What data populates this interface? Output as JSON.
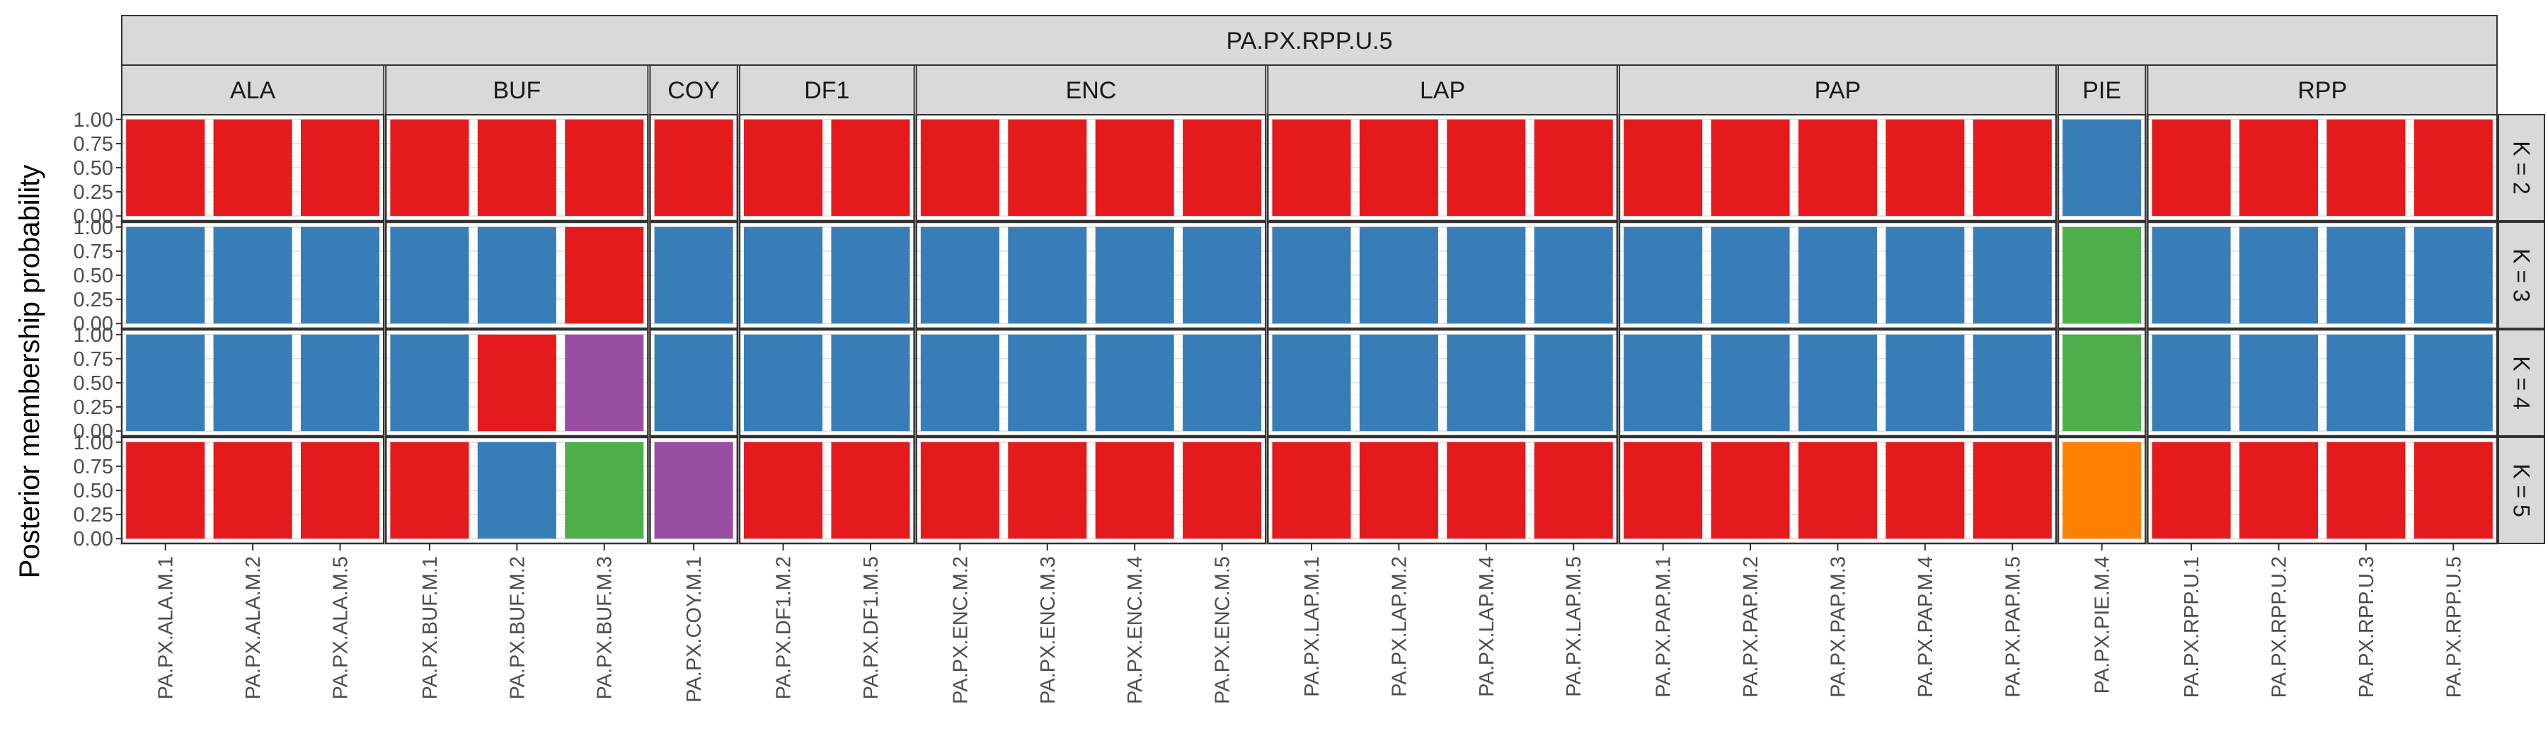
{
  "chart_data": {
    "type": "bar",
    "subtype": "stacked-faceted",
    "title": "PA.PX.RPP.U.5",
    "ylabel": "Posterior membership probability",
    "xlabel": "",
    "ylim": [
      0,
      1
    ],
    "y_ticks": [
      "0.00",
      "0.25",
      "0.50",
      "0.75",
      "1.00"
    ],
    "grid": true,
    "cluster_colors": {
      "1": "#E41A1C",
      "2": "#377EB8",
      "3": "#4DAF4A",
      "4": "#984EA3",
      "5": "#FF7F00"
    },
    "groups": [
      {
        "name": "ALA",
        "samples": [
          "PA.PX.ALA.M.1",
          "PA.PX.ALA.M.2",
          "PA.PX.ALA.M.5"
        ]
      },
      {
        "name": "BUF",
        "samples": [
          "PA.PX.BUF.M.1",
          "PA.PX.BUF.M.2",
          "PA.PX.BUF.M.3"
        ]
      },
      {
        "name": "COY",
        "samples": [
          "PA.PX.COY.M.1"
        ]
      },
      {
        "name": "DF1",
        "samples": [
          "PA.PX.DF1.M.2",
          "PA.PX.DF1.M.5"
        ]
      },
      {
        "name": "ENC",
        "samples": [
          "PA.PX.ENC.M.2",
          "PA.PX.ENC.M.3",
          "PA.PX.ENC.M.4",
          "PA.PX.ENC.M.5"
        ]
      },
      {
        "name": "LAP",
        "samples": [
          "PA.PX.LAP.M.1",
          "PA.PX.LAP.M.2",
          "PA.PX.LAP.M.4",
          "PA.PX.LAP.M.5"
        ]
      },
      {
        "name": "PAP",
        "samples": [
          "PA.PX.PAP.M.1",
          "PA.PX.PAP.M.2",
          "PA.PX.PAP.M.3",
          "PA.PX.PAP.M.4",
          "PA.PX.PAP.M.5"
        ]
      },
      {
        "name": "PIE",
        "samples": [
          "PA.PX.PIE.M.4"
        ]
      },
      {
        "name": "RPP",
        "samples": [
          "PA.PX.RPP.U.1",
          "PA.PX.RPP.U.2",
          "PA.PX.RPP.U.3",
          "PA.PX.RPP.U.5"
        ]
      }
    ],
    "rows": [
      {
        "label": "K = 2",
        "assignments": [
          1,
          1,
          1,
          1,
          1,
          1,
          1,
          1,
          1,
          1,
          1,
          1,
          1,
          1,
          1,
          1,
          1,
          1,
          1,
          1,
          1,
          1,
          2,
          1,
          1,
          1,
          1
        ]
      },
      {
        "label": "K = 3",
        "assignments": [
          2,
          2,
          2,
          2,
          2,
          1,
          2,
          2,
          2,
          2,
          2,
          2,
          2,
          2,
          2,
          2,
          2,
          2,
          2,
          2,
          2,
          2,
          3,
          2,
          2,
          2,
          2
        ]
      },
      {
        "label": "K = 4",
        "assignments": [
          2,
          2,
          2,
          2,
          1,
          4,
          2,
          2,
          2,
          2,
          2,
          2,
          2,
          2,
          2,
          2,
          2,
          2,
          2,
          2,
          2,
          2,
          3,
          2,
          2,
          2,
          2
        ]
      },
      {
        "label": "K = 5",
        "assignments": [
          1,
          1,
          1,
          1,
          2,
          3,
          4,
          1,
          1,
          1,
          1,
          1,
          1,
          1,
          1,
          1,
          1,
          1,
          1,
          1,
          1,
          1,
          5,
          1,
          1,
          1,
          1
        ]
      }
    ]
  }
}
